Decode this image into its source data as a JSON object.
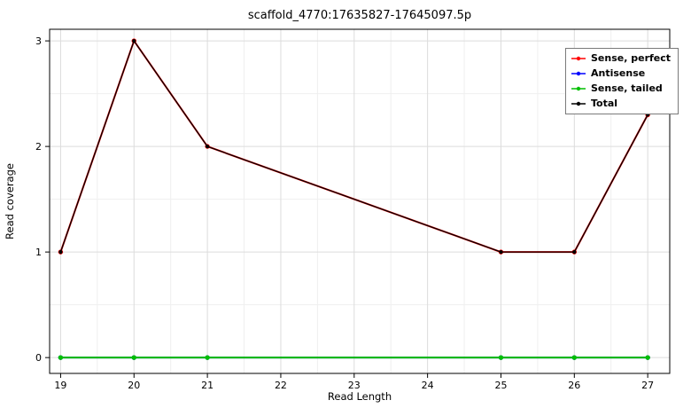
{
  "chart_data": {
    "type": "line",
    "title": "scaffold_4770:17635827-17645097.5p",
    "xlabel": "Read Length",
    "ylabel": "Read coverage",
    "x": [
      19,
      20,
      21,
      25,
      26,
      27
    ],
    "x_ticks": [
      19,
      20,
      21,
      22,
      23,
      24,
      25,
      26,
      27
    ],
    "y_ticks": [
      0,
      1,
      2,
      3
    ],
    "xlim": [
      18.85,
      27.3
    ],
    "ylim": [
      -0.15,
      3.11
    ],
    "grid": true,
    "legend_position": "top-right",
    "series": [
      {
        "name": "Sense, perfect",
        "color": "#ff0000",
        "values": [
          1,
          3,
          2,
          1,
          1,
          2.3
        ]
      },
      {
        "name": "Antisense",
        "color": "#0000ff",
        "values": [
          0,
          0,
          0,
          0,
          0,
          0
        ]
      },
      {
        "name": "Sense, tailed",
        "color": "#00bf00",
        "values": [
          0,
          0,
          0,
          0,
          0,
          0
        ]
      },
      {
        "name": "Total",
        "color": "#000000",
        "values": [
          1,
          3,
          2,
          1,
          1,
          2.3
        ]
      }
    ],
    "colors": {
      "panel_border": "#000000",
      "grid_major": "#dcdcdc",
      "grid_minor": "#efefef",
      "background": "#ffffff"
    }
  }
}
